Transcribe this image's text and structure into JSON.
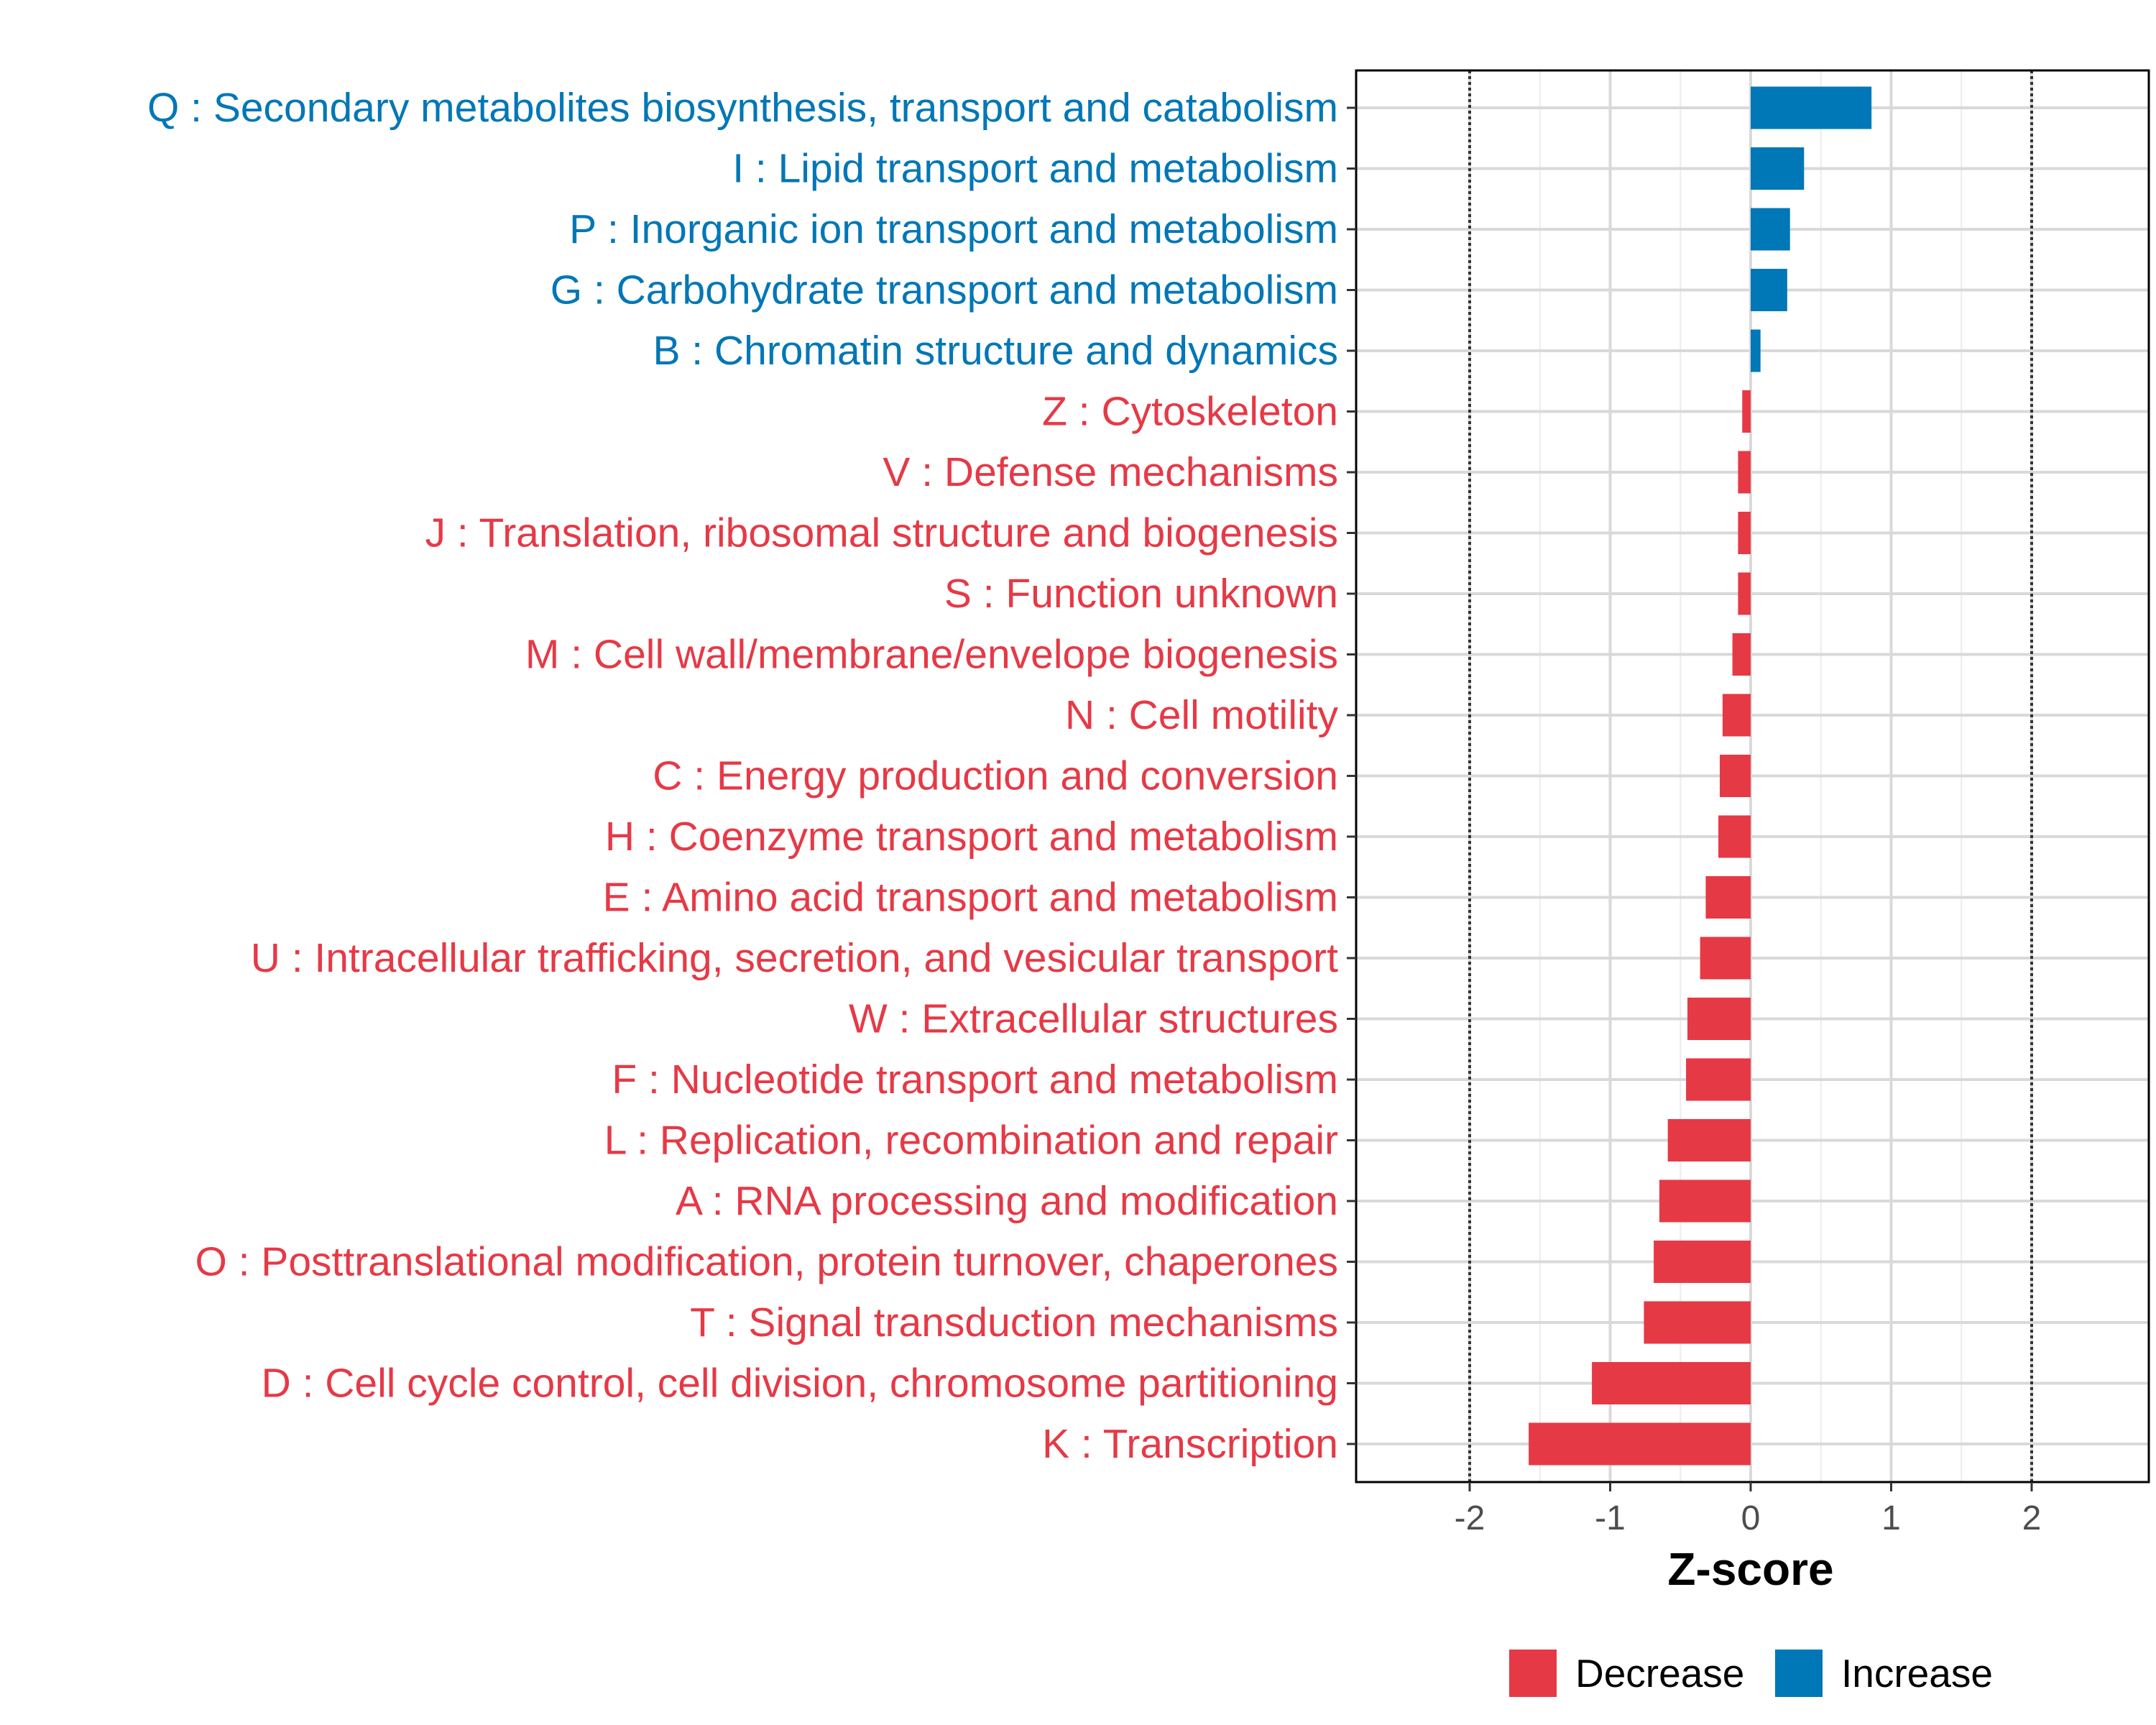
{
  "chart_data": {
    "type": "bar",
    "orientation": "horizontal",
    "title": "",
    "xlabel": "Z-score",
    "ylabel": "",
    "xlim": [
      -2.8,
      2.85
    ],
    "x_ticks": [
      -2,
      -1,
      0,
      1,
      2
    ],
    "x_tick_labels": [
      "-2",
      "-1",
      "0",
      "1",
      "2"
    ],
    "reference_lines": [
      -2,
      2
    ],
    "grid": true,
    "legend_position": "bottom",
    "categories": [
      "Q : Secondary metabolites biosynthesis, transport and catabolism",
      "I : Lipid transport and metabolism",
      "P : Inorganic ion transport and metabolism",
      "G : Carbohydrate transport and metabolism",
      "B : Chromatin structure and dynamics",
      "Z : Cytoskeleton",
      "V : Defense mechanisms",
      "J : Translation, ribosomal structure and biogenesis",
      "S : Function unknown",
      "M : Cell wall/membrane/envelope biogenesis",
      "N : Cell motility",
      "C : Energy production and conversion",
      "H : Coenzyme transport and metabolism",
      "E : Amino acid transport and metabolism",
      "U : Intracellular trafficking, secretion, and vesicular transport",
      "W : Extracellular structures",
      "F : Nucleotide transport and metabolism",
      "L : Replication, recombination and repair",
      "A : RNA processing and modification",
      "O : Posttranslational modification, protein turnover, chaperones",
      "T : Signal transduction mechanisms",
      "D : Cell cycle control, cell division, chromosome partitioning",
      "K : Transcription"
    ],
    "values": [
      0.86,
      0.38,
      0.28,
      0.26,
      0.07,
      -0.06,
      -0.09,
      -0.09,
      -0.09,
      -0.13,
      -0.2,
      -0.22,
      -0.23,
      -0.32,
      -0.36,
      -0.45,
      -0.46,
      -0.59,
      -0.65,
      -0.69,
      -0.76,
      -1.13,
      -1.58
    ],
    "groups": [
      "Increase",
      "Increase",
      "Increase",
      "Increase",
      "Increase",
      "Decrease",
      "Decrease",
      "Decrease",
      "Decrease",
      "Decrease",
      "Decrease",
      "Decrease",
      "Decrease",
      "Decrease",
      "Decrease",
      "Decrease",
      "Decrease",
      "Decrease",
      "Decrease",
      "Decrease",
      "Decrease",
      "Decrease",
      "Decrease"
    ],
    "legend": [
      {
        "name": "Decrease",
        "color": "#e63946"
      },
      {
        "name": "Increase",
        "color": "#0077b6"
      }
    ]
  }
}
